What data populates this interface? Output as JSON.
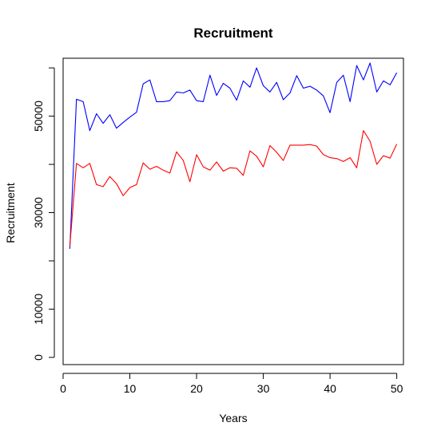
{
  "chart_data": {
    "type": "line",
    "title": "Recruitment",
    "xlabel": "Years",
    "ylabel": "Recruitment",
    "xlim": [
      0,
      51
    ],
    "ylim": [
      -1500,
      62000
    ],
    "xticks": [
      0,
      10,
      20,
      30,
      40,
      50
    ],
    "yticks": [
      0,
      10000,
      30000,
      50000
    ],
    "yticks_minor": [
      20000,
      40000,
      60000
    ],
    "grid": false,
    "legend": "none",
    "series": [
      {
        "color": "#0000ff",
        "x": [
          1,
          2,
          3,
          4,
          5,
          6,
          7,
          8,
          9,
          10,
          11,
          12,
          13,
          14,
          15,
          16,
          17,
          18,
          19,
          20,
          21,
          22,
          23,
          24,
          25,
          26,
          27,
          28,
          29,
          30,
          31,
          32,
          33,
          34,
          35,
          36,
          37,
          38,
          39,
          40,
          41,
          42,
          43,
          44,
          45,
          46,
          47,
          48,
          49,
          50
        ],
        "values": [
          22500,
          53500,
          53000,
          47000,
          50500,
          48500,
          50300,
          47500,
          48700,
          49800,
          50800,
          56700,
          57500,
          53000,
          53000,
          53200,
          55000,
          54800,
          55400,
          53200,
          53000,
          58500,
          54300,
          56800,
          55800,
          53300,
          57300,
          56000,
          60000,
          56300,
          55000,
          57000,
          53400,
          54800,
          58400,
          55800,
          56200,
          55400,
          54200,
          50700,
          57000,
          58500,
          53000,
          60500,
          57500,
          61000,
          55000,
          57300,
          56500,
          59000
        ]
      },
      {
        "color": "#ff0000",
        "x": [
          1,
          2,
          3,
          4,
          5,
          6,
          7,
          8,
          9,
          10,
          11,
          12,
          13,
          14,
          15,
          16,
          17,
          18,
          19,
          20,
          21,
          22,
          23,
          24,
          25,
          26,
          27,
          28,
          29,
          30,
          31,
          32,
          33,
          34,
          35,
          36,
          37,
          38,
          39,
          40,
          41,
          42,
          43,
          44,
          45,
          46,
          47,
          48,
          49,
          50
        ],
        "values": [
          23000,
          40200,
          39300,
          40200,
          35800,
          35400,
          37500,
          36000,
          33500,
          35200,
          35800,
          40300,
          39000,
          39600,
          38800,
          38200,
          42600,
          40800,
          36400,
          42000,
          39500,
          38800,
          40500,
          38600,
          39300,
          39200,
          37700,
          42800,
          41700,
          39500,
          43900,
          42500,
          40800,
          44000,
          44000,
          44000,
          44100,
          43800,
          42000,
          41400,
          41200,
          40600,
          41400,
          39300,
          47000,
          44800,
          40000,
          41800,
          41300,
          44200
        ]
      }
    ]
  }
}
